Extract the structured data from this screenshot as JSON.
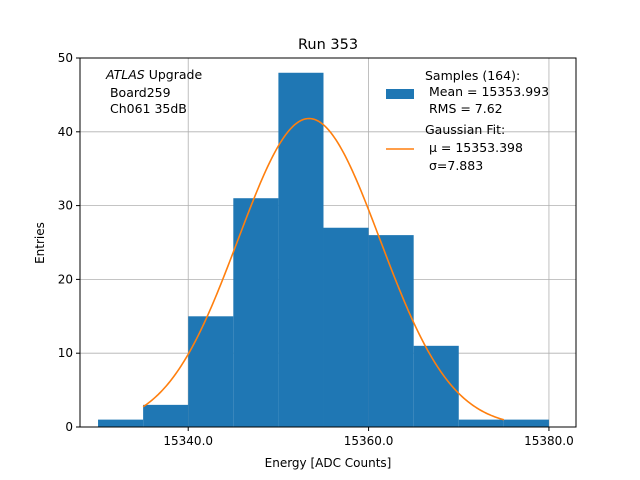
{
  "chart_data": {
    "type": "bar",
    "title": "Run 353",
    "xlabel": "Energy [ADC Counts]",
    "ylabel": "Entries",
    "xlim": [
      15328,
      15383
    ],
    "ylim": [
      0,
      50
    ],
    "xticks": [
      15340,
      15360,
      15380
    ],
    "xtick_labels": [
      "15340.0",
      "15360.0",
      "15380.0"
    ],
    "yticks": [
      0,
      10,
      20,
      30,
      40,
      50
    ],
    "grid": true,
    "legend_position": "top-right",
    "annotation": {
      "line1_italic": "ATLAS",
      "line1_rest": " Upgrade",
      "line2": " Board259",
      "line3": " Ch061 35dB"
    },
    "histogram": {
      "bin_edges": [
        15330,
        15335,
        15340,
        15345,
        15350,
        15355,
        15360,
        15365,
        15370,
        15375,
        15380
      ],
      "counts": [
        1,
        3,
        15,
        31,
        48,
        27,
        26,
        11,
        1,
        1
      ],
      "color": "#1f77b4",
      "legend_lines": [
        "Samples (164):",
        " Mean = 15353.993",
        " RMS = 7.62"
      ]
    },
    "fit": {
      "mu": 15353.398,
      "sigma": 7.883,
      "amplitude": 41.8,
      "x_range": [
        15335,
        15375
      ],
      "color": "#ff7f0e",
      "legend_lines": [
        "Gaussian Fit:",
        " μ = 15353.398",
        " σ=7.883"
      ]
    }
  }
}
